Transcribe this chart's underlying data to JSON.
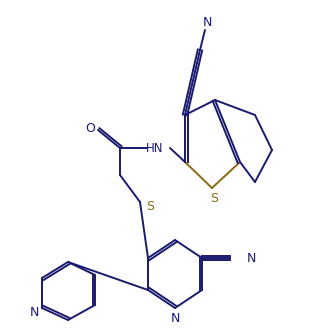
{
  "background_color": "#ffffff",
  "line_color": "#1a1a6e",
  "atom_colors": {
    "N": "#1a1a6e",
    "S": "#8b6914",
    "O": "#1a1a6e",
    "C": "#1a1a6e"
  },
  "figsize": [
    3.11,
    3.31
  ],
  "dpi": 100
}
